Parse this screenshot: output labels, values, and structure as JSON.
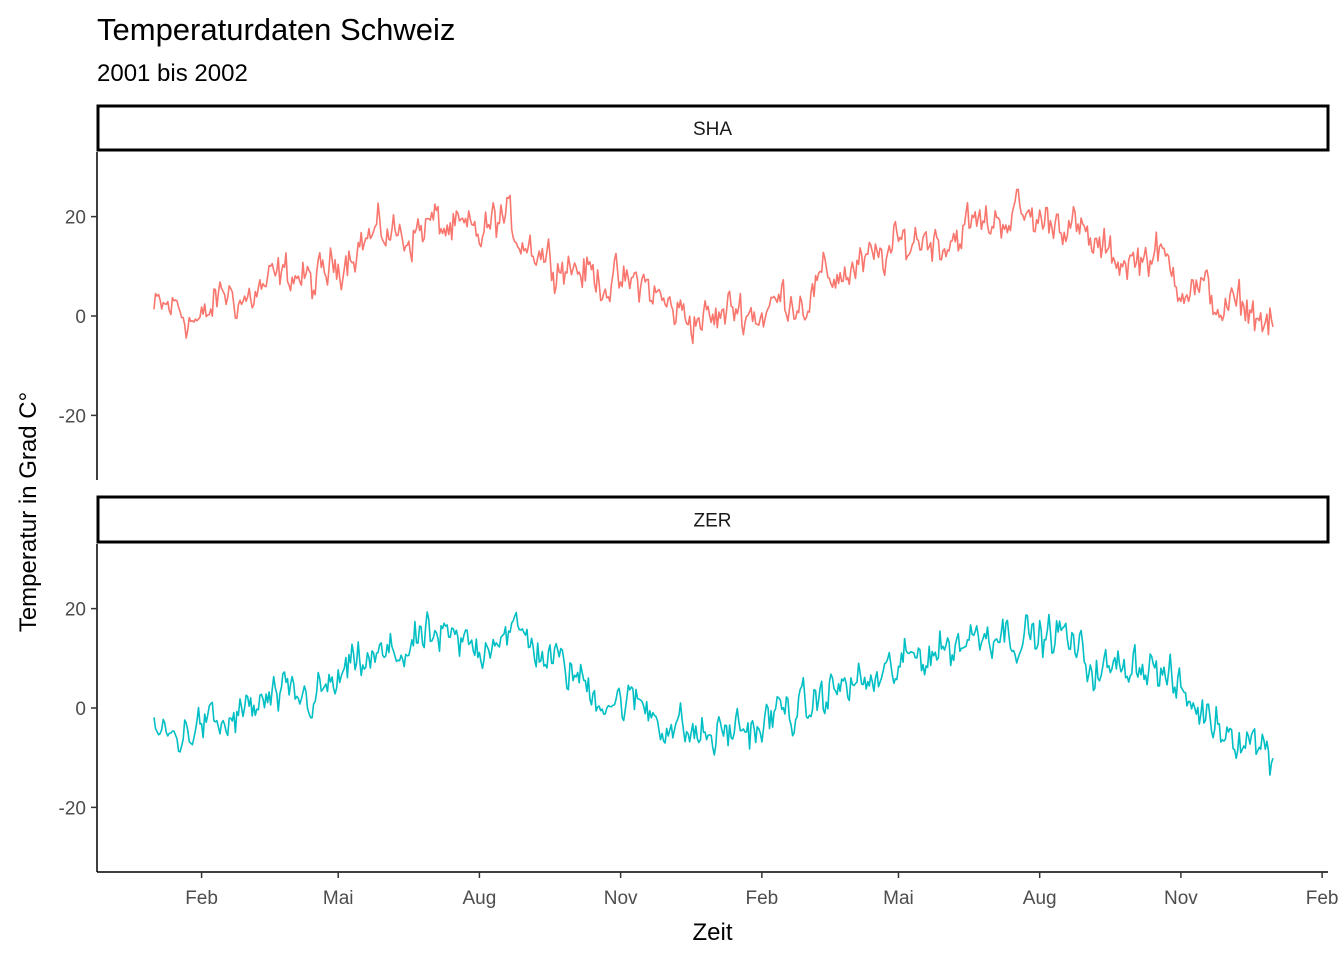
{
  "title": "Temperaturdaten Schweiz",
  "subtitle": "2001 bis 2002",
  "chart_data": {
    "type": "line",
    "title": "Temperaturdaten Schweiz",
    "subtitle": "2001 bis 2002",
    "xlabel": "Zeit",
    "ylabel": "Temperatur in Grad C°",
    "x_range": [
      "2001-01-01",
      "2002-12-31"
    ],
    "x_ticks": [
      {
        "date": "2001-02-01",
        "label": "Feb"
      },
      {
        "date": "2001-05-01",
        "label": "Mai"
      },
      {
        "date": "2001-08-01",
        "label": "Aug"
      },
      {
        "date": "2001-11-01",
        "label": "Nov"
      },
      {
        "date": "2002-02-01",
        "label": "Feb"
      },
      {
        "date": "2002-05-01",
        "label": "Mai"
      },
      {
        "date": "2002-08-01",
        "label": "Aug"
      },
      {
        "date": "2002-11-01",
        "label": "Nov"
      },
      {
        "date": "2003-02-01",
        "label": "Feb"
      }
    ],
    "ylim": [
      -33,
      33
    ],
    "y_ticks": [
      -20,
      0,
      20
    ],
    "grid": false,
    "legend": "none",
    "facets": [
      {
        "strip": "SHA",
        "color": "#F8766D",
        "x": [
          "2001-01-01",
          "2001-01-15",
          "2001-02-01",
          "2001-02-15",
          "2001-03-01",
          "2001-03-15",
          "2001-04-01",
          "2001-04-15",
          "2001-05-01",
          "2001-05-15",
          "2001-06-01",
          "2001-06-15",
          "2001-07-01",
          "2001-07-15",
          "2001-08-01",
          "2001-08-15",
          "2001-09-01",
          "2001-09-15",
          "2001-10-01",
          "2001-10-15",
          "2001-11-01",
          "2001-11-15",
          "2001-12-01",
          "2001-12-15",
          "2002-01-01",
          "2002-01-15",
          "2002-02-01",
          "2002-02-15",
          "2002-03-01",
          "2002-03-15",
          "2002-04-01",
          "2002-04-15",
          "2002-05-01",
          "2002-05-15",
          "2002-06-01",
          "2002-06-15",
          "2002-07-01",
          "2002-07-15",
          "2002-08-01",
          "2002-08-15",
          "2002-09-01",
          "2002-09-15",
          "2002-10-01",
          "2002-10-15",
          "2002-11-01",
          "2002-11-15",
          "2002-12-01",
          "2002-12-15",
          "2002-12-31"
        ],
        "y": [
          1,
          2,
          -2,
          5,
          3,
          6,
          9,
          6,
          11,
          15,
          17,
          16,
          19,
          17,
          16,
          20,
          15,
          12,
          10,
          8,
          6,
          7,
          2,
          0,
          -1,
          2,
          0,
          4,
          3,
          8,
          9,
          11,
          14,
          16,
          15,
          18,
          19,
          21,
          19,
          20,
          15,
          12,
          11,
          13,
          7,
          5,
          1,
          2,
          -3
        ]
      },
      {
        "strip": "ZER",
        "color": "#00BFC4",
        "x": [
          "2001-01-01",
          "2001-01-15",
          "2001-02-01",
          "2001-02-15",
          "2001-03-01",
          "2001-03-15",
          "2001-04-01",
          "2001-04-15",
          "2001-05-01",
          "2001-05-15",
          "2001-06-01",
          "2001-06-15",
          "2001-07-01",
          "2001-07-15",
          "2001-08-01",
          "2001-08-15",
          "2001-09-01",
          "2001-09-15",
          "2001-10-01",
          "2001-10-15",
          "2001-11-01",
          "2001-11-15",
          "2001-12-01",
          "2001-12-15",
          "2002-01-01",
          "2002-01-15",
          "2002-02-01",
          "2002-02-15",
          "2002-03-01",
          "2002-03-15",
          "2002-04-01",
          "2002-04-15",
          "2002-05-01",
          "2002-05-15",
          "2002-06-01",
          "2002-06-15",
          "2002-07-01",
          "2002-07-15",
          "2002-08-01",
          "2002-08-15",
          "2002-09-01",
          "2002-09-15",
          "2002-10-01",
          "2002-10-15",
          "2002-11-01",
          "2002-11-15",
          "2002-12-01",
          "2002-12-15",
          "2002-12-31"
        ],
        "y": [
          -5,
          -6,
          -3,
          -4,
          -1,
          1,
          2,
          2,
          5,
          9,
          10,
          12,
          14,
          13,
          12,
          16,
          14,
          10,
          7,
          3,
          1,
          1,
          -3,
          -5,
          -6,
          -4,
          -4,
          0,
          -1,
          3,
          5,
          5,
          8,
          11,
          12,
          14,
          16,
          15,
          14,
          15,
          9,
          7,
          10,
          8,
          3,
          -1,
          -4,
          -6,
          -9
        ]
      }
    ]
  }
}
